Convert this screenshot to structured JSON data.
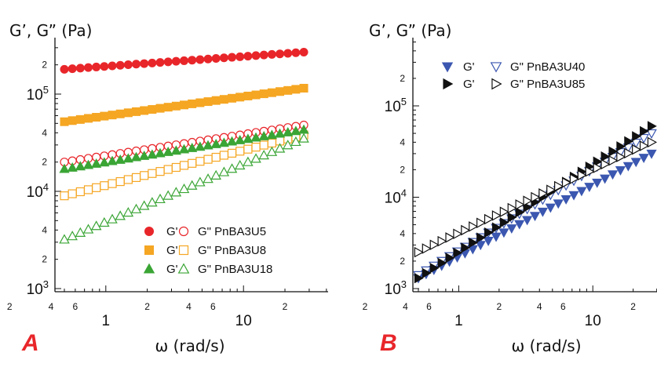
{
  "chart_data": [
    {
      "type": "scatter",
      "panel_label": "A",
      "panel_color": "#e8262a",
      "ylabel": "G’, G” (Pa)",
      "xlabel": "ω (rad/s)",
      "xscale": "log",
      "yscale": "log",
      "xlim": [
        0.48,
        30
      ],
      "ylim": [
        900,
        330000
      ],
      "x_major_ticks": [
        {
          "v": 1,
          "label": "1"
        },
        {
          "v": 10,
          "label": "10"
        }
      ],
      "x_minor_labels": [
        {
          "v": 0.2,
          "label": "2"
        },
        {
          "v": 0.4,
          "label": "4"
        },
        {
          "v": 0.6,
          "label": "6"
        },
        {
          "v": 2,
          "label": "2"
        },
        {
          "v": 4,
          "label": "4"
        },
        {
          "v": 6,
          "label": "6"
        },
        {
          "v": 20,
          "label": "2"
        }
      ],
      "y_major_ticks": [
        {
          "v": 1000,
          "base": "10",
          "exp": "3"
        },
        {
          "v": 10000,
          "base": "10",
          "exp": "4"
        },
        {
          "v": 100000,
          "base": "10",
          "exp": "5"
        }
      ],
      "y_minor_labels": [
        {
          "v": 2000,
          "label": "2"
        },
        {
          "v": 4000,
          "label": "4"
        },
        {
          "v": 20000,
          "label": "2"
        },
        {
          "v": 40000,
          "label": "4"
        },
        {
          "v": 200000,
          "label": "2"
        }
      ],
      "x_points": [
        0.5,
        0.5714,
        0.6531,
        0.7463,
        0.8529,
        0.9747,
        1.1139,
        1.273,
        1.4547,
        1.6624,
        1.8998,
        2.1711,
        2.4811,
        2.8354,
        3.2403,
        3.7029,
        4.2317,
        4.836,
        5.5265,
        6.3157,
        7.2175,
        8.2481,
        9.4258,
        10.7718,
        12.31,
        14.0677,
        16.0765,
        18.3721,
        20.9955,
        23.9935,
        27.4196
      ],
      "series": [
        {
          "name": "G'",
          "sample": "PnBA3U5",
          "marker": "circle",
          "filled": true,
          "color": "#e8262a",
          "y_range": [
            180000,
            270000
          ]
        },
        {
          "name": "G\"",
          "sample": "PnBA3U5",
          "marker": "circle",
          "filled": false,
          "color": "#e8262a",
          "y_range": [
            20000,
            48000
          ]
        },
        {
          "name": "G'",
          "sample": "PnBA3U8",
          "marker": "square",
          "filled": true,
          "color": "#f5a623",
          "y_range": [
            52000,
            115000
          ]
        },
        {
          "name": "G\"",
          "sample": "PnBA3U8",
          "marker": "square",
          "filled": false,
          "color": "#f5a623",
          "y_range": [
            9000,
            38000
          ]
        },
        {
          "name": "G'",
          "sample": "PnBA3U18",
          "marker": "triangle-up",
          "filled": true,
          "color": "#3aa535",
          "y_range": [
            17000,
            43000
          ]
        },
        {
          "name": "G\"",
          "sample": "PnBA3U18",
          "marker": "triangle-up",
          "filled": false,
          "color": "#3aa535",
          "y_range": [
            3200,
            35000
          ]
        }
      ],
      "legend": {
        "position": "bottom-right",
        "rows": [
          {
            "gp_label": "G'",
            "gpp_label": "G\" PnBA3U5"
          },
          {
            "gp_label": "G'",
            "gpp_label": "G\" PnBA3U8"
          },
          {
            "gp_label": "G'",
            "gpp_label": "G\" PnBA3U18"
          }
        ]
      }
    },
    {
      "type": "scatter",
      "panel_label": "B",
      "panel_color": "#e8262a",
      "ylabel": "G’, G” (Pa)",
      "xlabel": "ω (rad/s)",
      "xscale": "log",
      "yscale": "log",
      "xlim": [
        0.48,
        30
      ],
      "ylim": [
        900,
        330000
      ],
      "x_major_ticks": [
        {
          "v": 1,
          "label": "1"
        },
        {
          "v": 10,
          "label": "10"
        }
      ],
      "x_minor_labels": [
        {
          "v": 0.2,
          "label": "2"
        },
        {
          "v": 0.4,
          "label": "4"
        },
        {
          "v": 0.6,
          "label": "6"
        },
        {
          "v": 2,
          "label": "2"
        },
        {
          "v": 4,
          "label": "4"
        },
        {
          "v": 6,
          "label": "6"
        },
        {
          "v": 20,
          "label": "2"
        }
      ],
      "y_major_ticks": [
        {
          "v": 1000,
          "base": "10",
          "exp": "3"
        },
        {
          "v": 10000,
          "base": "10",
          "exp": "4"
        },
        {
          "v": 100000,
          "base": "10",
          "exp": "5"
        }
      ],
      "y_minor_labels": [
        {
          "v": 2000,
          "label": "2"
        },
        {
          "v": 4000,
          "label": "4"
        },
        {
          "v": 20000,
          "label": "2"
        },
        {
          "v": 40000,
          "label": "4"
        },
        {
          "v": 200000,
          "label": "2"
        }
      ],
      "x_points": [
        0.5,
        0.5714,
        0.6531,
        0.7463,
        0.8529,
        0.9747,
        1.1139,
        1.273,
        1.4547,
        1.6624,
        1.8998,
        2.1711,
        2.4811,
        2.8354,
        3.2403,
        3.7029,
        4.2317,
        4.836,
        5.5265,
        6.3157,
        7.2175,
        8.2481,
        9.4258,
        10.7718,
        12.31,
        14.0677,
        16.0765,
        18.3721,
        20.9955,
        23.9935,
        27.4196
      ],
      "series": [
        {
          "name": "G'",
          "sample": "PnBA3U40",
          "marker": "triangle-down",
          "filled": true,
          "color": "#3b57b0",
          "y_range": [
            1300,
            30000
          ]
        },
        {
          "name": "G\"",
          "sample": "PnBA3U40",
          "marker": "triangle-down",
          "filled": false,
          "color": "#3b57b0",
          "y_range": [
            1400,
            50000
          ]
        },
        {
          "name": "G'",
          "sample": "PnBA3U85",
          "marker": "triangle-right",
          "filled": true,
          "color": "#111111",
          "y_range": [
            1300,
            60000
          ]
        },
        {
          "name": "G\"",
          "sample": "PnBA3U85",
          "marker": "triangle-right",
          "filled": false,
          "color": "#111111",
          "y_range": [
            2500,
            40000
          ]
        }
      ],
      "legend": {
        "position": "top-left",
        "rows": [
          {
            "gp_label": "G'",
            "gpp_label": "G\" PnBA3U40"
          },
          {
            "gp_label": "G'",
            "gpp_label": "G\" PnBA3U85"
          }
        ]
      }
    }
  ]
}
